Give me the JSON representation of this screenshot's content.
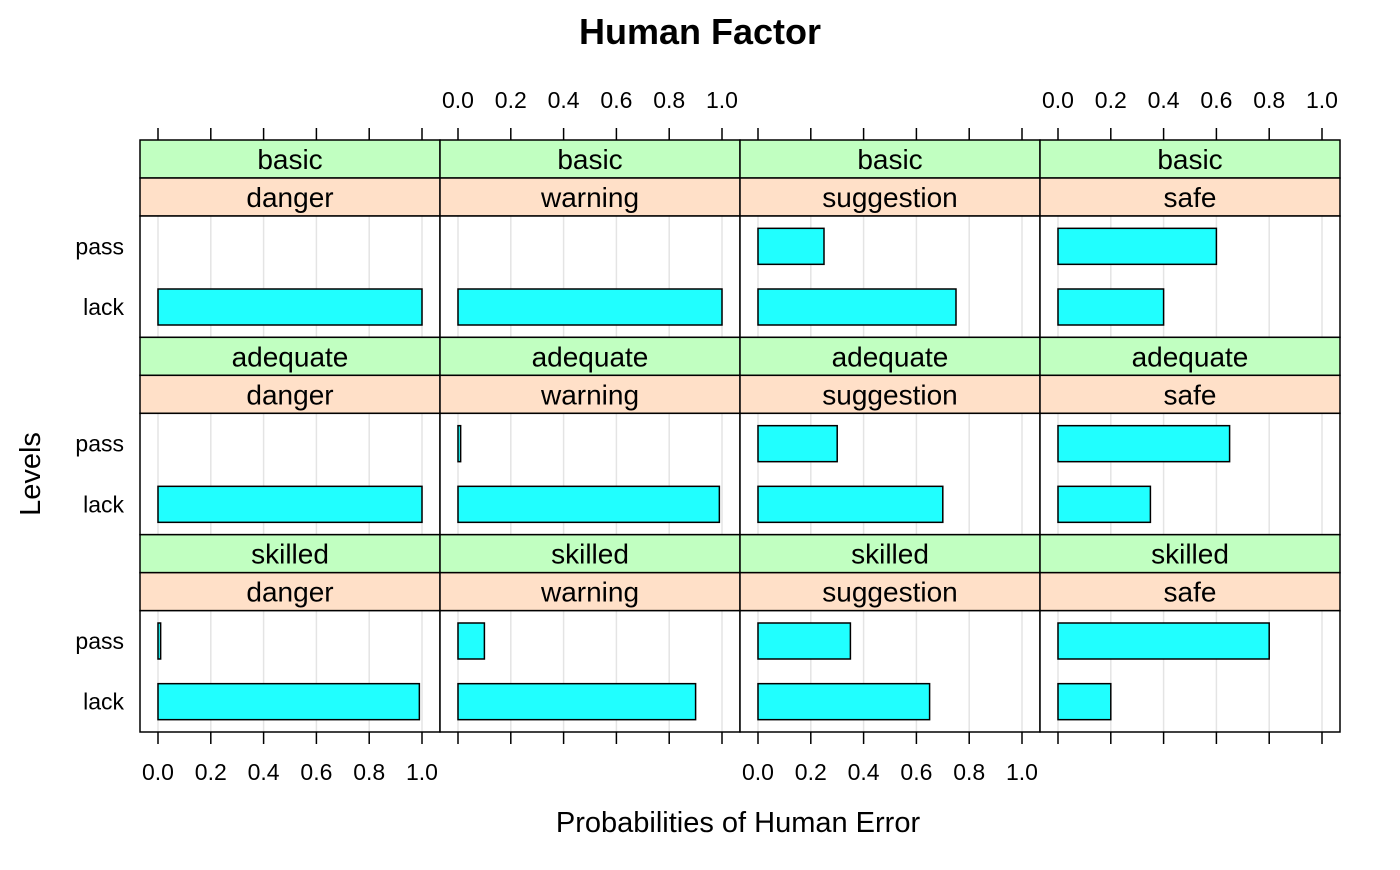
{
  "chart_data": {
    "type": "bar",
    "orientation": "horizontal",
    "layout": "trellis",
    "title": "Human Factor",
    "xlabel": "Probabilities of Human Error",
    "ylabel": "Levels",
    "xlim": [
      0,
      1
    ],
    "ticks": [
      0.0,
      0.2,
      0.4,
      0.6,
      0.8,
      1.0
    ],
    "tick_labels": [
      "0.0",
      "0.2",
      "0.4",
      "0.6",
      "0.8",
      "1.0"
    ],
    "grid": true,
    "levels": [
      "pass",
      "lack"
    ],
    "strip_colors": {
      "outer": "#C1FFC1",
      "inner": "#FFE0C8"
    },
    "bar_color": "#20FFFF",
    "grid_color": "#E4E4E4",
    "panels": [
      {
        "outer": "basic",
        "inner": "danger",
        "values": {
          "pass": 0.0,
          "lack": 1.0
        }
      },
      {
        "outer": "basic",
        "inner": "warning",
        "values": {
          "pass": 0.0,
          "lack": 1.0
        }
      },
      {
        "outer": "basic",
        "inner": "suggestion",
        "values": {
          "pass": 0.25,
          "lack": 0.75
        }
      },
      {
        "outer": "basic",
        "inner": "safe",
        "values": {
          "pass": 0.6,
          "lack": 0.4
        }
      },
      {
        "outer": "adequate",
        "inner": "danger",
        "values": {
          "pass": 0.0,
          "lack": 1.0
        }
      },
      {
        "outer": "adequate",
        "inner": "warning",
        "values": {
          "pass": 0.01,
          "lack": 0.99
        }
      },
      {
        "outer": "adequate",
        "inner": "suggestion",
        "values": {
          "pass": 0.3,
          "lack": 0.7
        }
      },
      {
        "outer": "adequate",
        "inner": "safe",
        "values": {
          "pass": 0.65,
          "lack": 0.35
        }
      },
      {
        "outer": "skilled",
        "inner": "danger",
        "values": {
          "pass": 0.01,
          "lack": 0.99
        }
      },
      {
        "outer": "skilled",
        "inner": "warning",
        "values": {
          "pass": 0.1,
          "lack": 0.9
        }
      },
      {
        "outer": "skilled",
        "inner": "suggestion",
        "values": {
          "pass": 0.35,
          "lack": 0.65
        }
      },
      {
        "outer": "skilled",
        "inner": "safe",
        "values": {
          "pass": 0.8,
          "lack": 0.2
        }
      }
    ]
  }
}
